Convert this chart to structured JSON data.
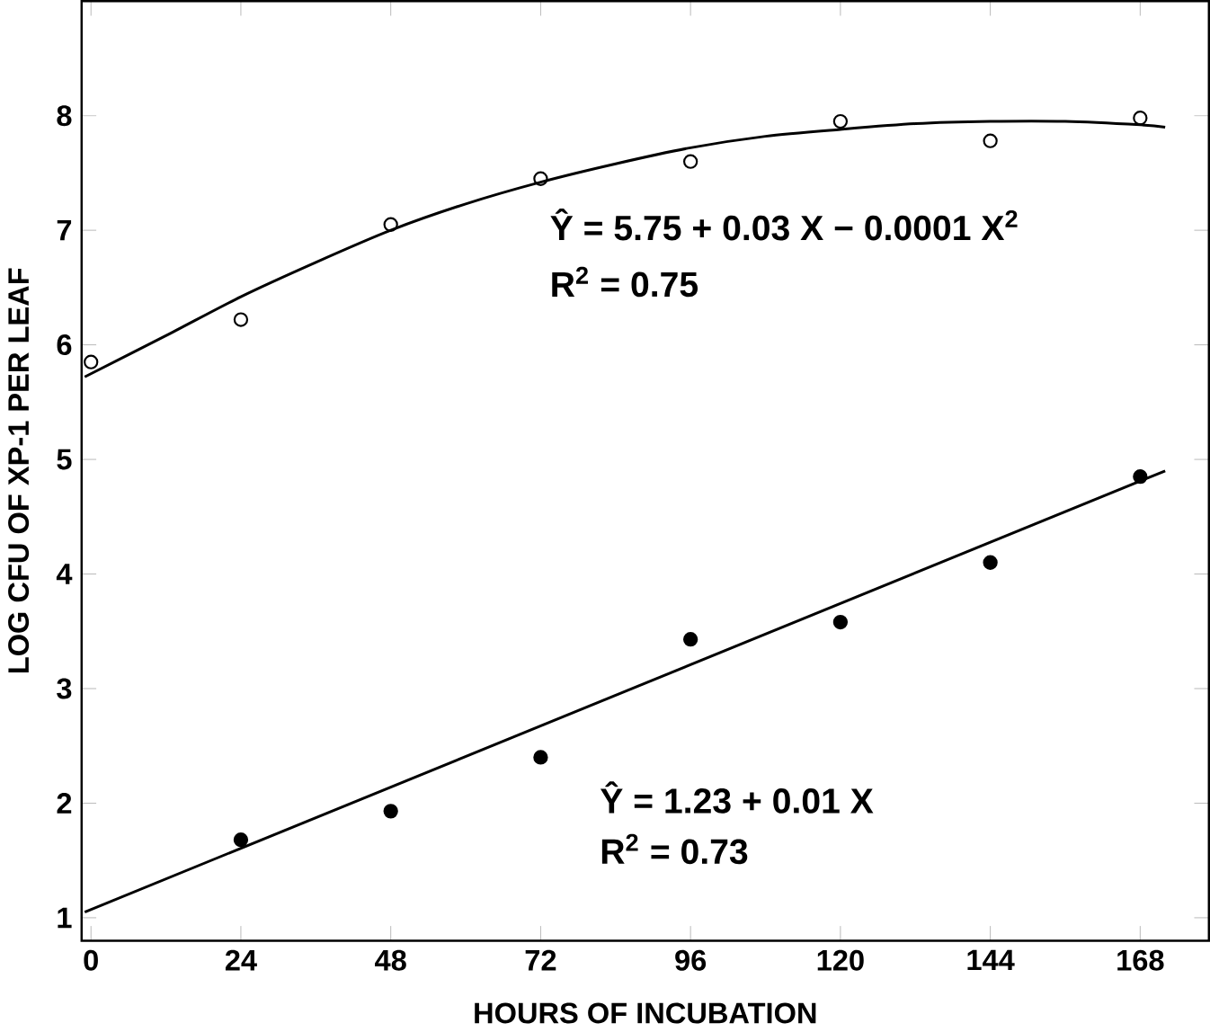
{
  "chart_data": {
    "type": "scatter",
    "xlabel": "HOURS OF INCUBATION",
    "ylabel": "LOG CFU OF XP-1 PER LEAF",
    "xlim": [
      -1.5,
      179
    ],
    "ylim": [
      0.8,
      9
    ],
    "xticks": [
      0,
      24,
      48,
      72,
      96,
      120,
      144,
      168
    ],
    "yticks": [
      1,
      2,
      3,
      4,
      5,
      6,
      7,
      8
    ],
    "grid": false,
    "series": [
      {
        "marker": "circle",
        "color": "#000000",
        "x": [
          0,
          24,
          48,
          72,
          96,
          120,
          144,
          168
        ],
        "values": [
          5.85,
          6.22,
          7.05,
          7.45,
          7.6,
          7.95,
          7.78,
          7.98
        ]
      },
      {
        "marker": "circle",
        "color": "#000000",
        "x": [
          24,
          48,
          72,
          96,
          120,
          144,
          168
        ],
        "values": [
          1.68,
          1.93,
          2.4,
          3.43,
          3.58,
          4.1,
          4.85
        ]
      },
      {
        "type": "line",
        "color": "#000000",
        "x": [
          -1,
          12,
          24,
          36,
          48,
          60,
          72,
          84,
          96,
          108,
          120,
          132,
          144,
          156,
          168,
          172
        ],
        "values": [
          5.72,
          6.08,
          6.42,
          6.72,
          7.0,
          7.23,
          7.42,
          7.58,
          7.72,
          7.82,
          7.88,
          7.93,
          7.95,
          7.95,
          7.92,
          7.9
        ]
      },
      {
        "type": "line",
        "color": "#000000",
        "x": [
          -1,
          172
        ],
        "values": [
          1.05,
          4.9
        ]
      }
    ],
    "annotations": [
      "Ŷ = 5.75 + 0.03 X − 0.0001 X$^{2}$",
      "R$^{2}$ = 0.75",
      "Ŷ = 1.23 + 0.01 X",
      "R$^{2}$ = 0.73"
    ]
  }
}
